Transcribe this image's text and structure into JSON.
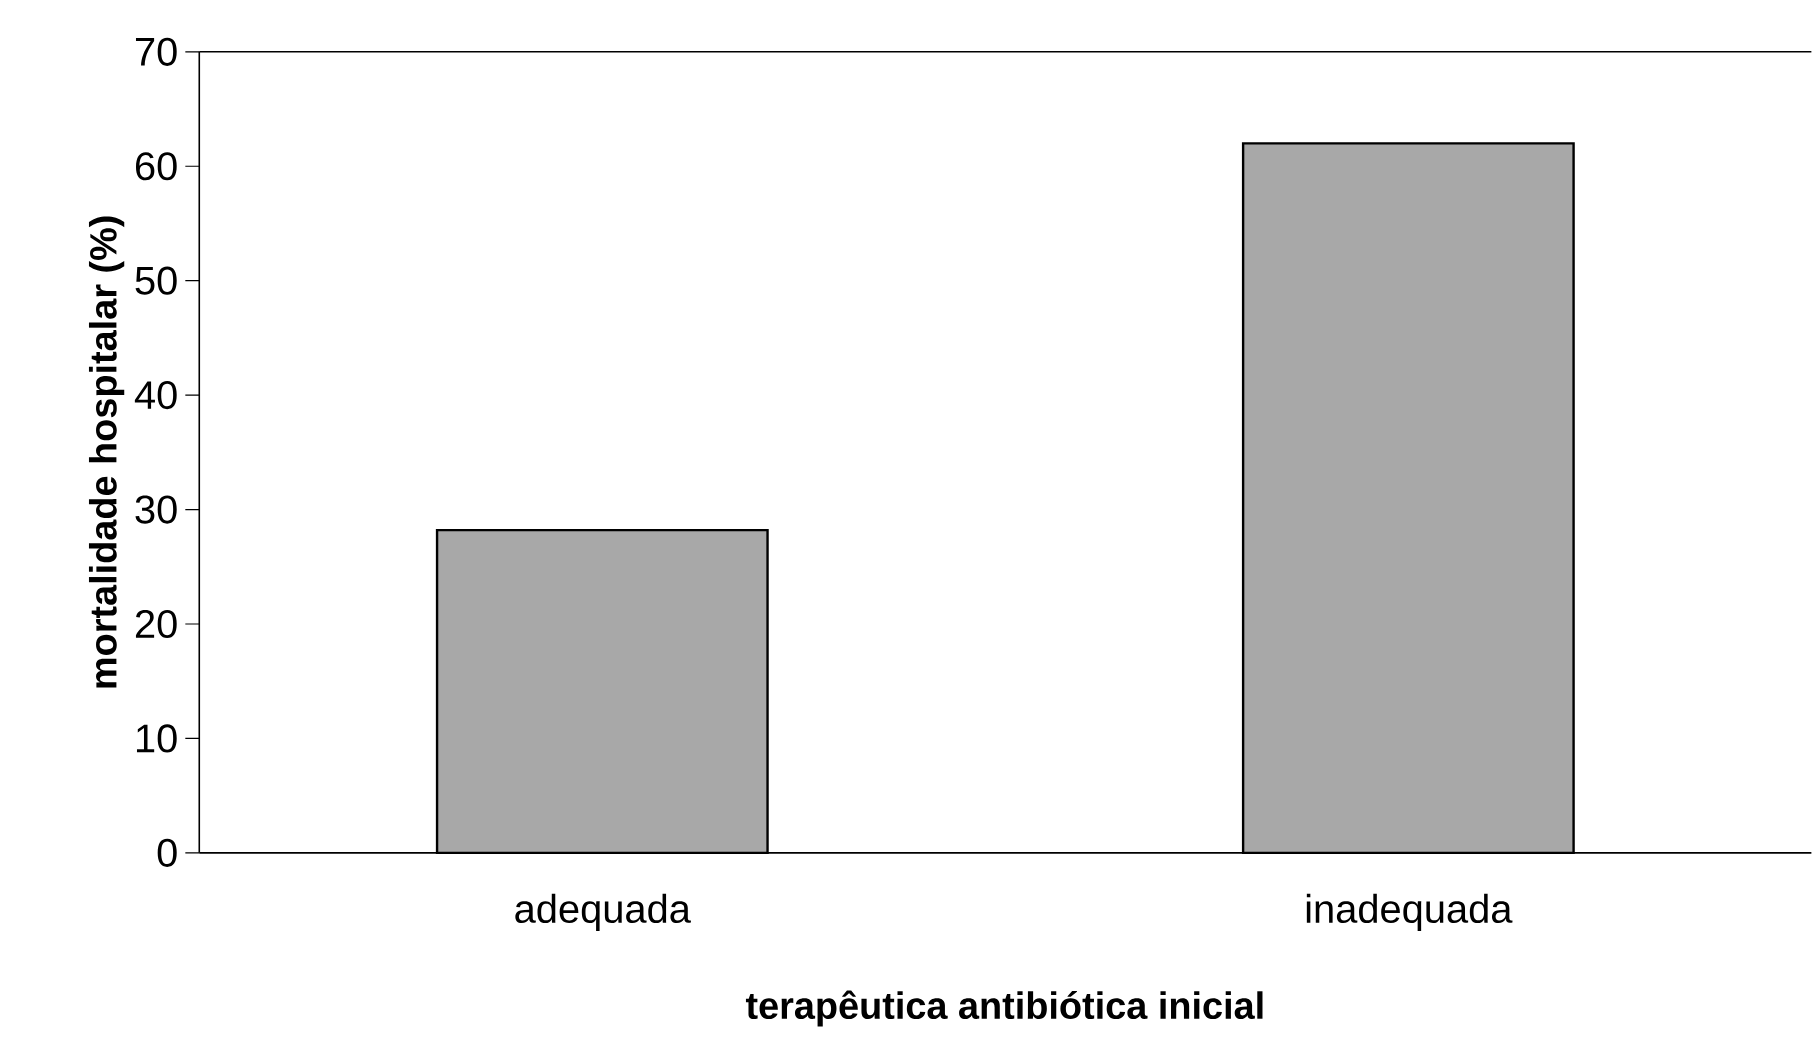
{
  "chart_data": {
    "type": "bar",
    "xlabel": "terapêutica antibiótica inicial",
    "ylabel": "mortalidade hospitalar (%)",
    "categories": [
      "adequada",
      "inadequada"
    ],
    "values": [
      28.2,
      62
    ],
    "color": "#a8a8a8",
    "ylim": [
      0,
      70
    ],
    "yticks": [
      0,
      10,
      20,
      30,
      40,
      50,
      60,
      70
    ]
  }
}
